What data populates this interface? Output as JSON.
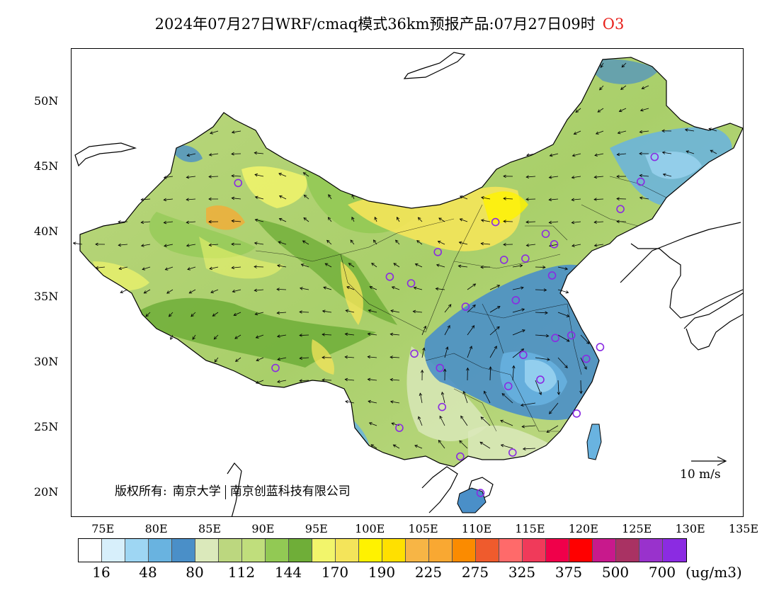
{
  "title": {
    "main": "2024年07月27日WRF/cmaq模式36km预报产品:07月27日09时",
    "variable": "O3"
  },
  "map": {
    "lat_labels": [
      "50N",
      "45N",
      "40N",
      "35N",
      "30N",
      "25N",
      "20N"
    ],
    "lon_labels": [
      "75E",
      "80E",
      "85E",
      "90E",
      "95E",
      "100E",
      "105E",
      "110E",
      "115E",
      "120E",
      "125E",
      "130E",
      "135E"
    ],
    "copyright": {
      "prefix": "版权所有:",
      "org1": "南京大学",
      "org2": "南京创蓝科技有限公司"
    },
    "wind_reference": "10 m/s",
    "colors": {
      "land_outline": "#000000",
      "station_marker": "#8a2be2"
    },
    "stations": [
      {
        "lon": 87.6,
        "lat": 43.8
      },
      {
        "lon": 91.1,
        "lat": 29.6
      },
      {
        "lon": 101.8,
        "lat": 36.6
      },
      {
        "lon": 103.8,
        "lat": 36.1
      },
      {
        "lon": 104.1,
        "lat": 30.7
      },
      {
        "lon": 102.7,
        "lat": 25.0
      },
      {
        "lon": 106.5,
        "lat": 29.6
      },
      {
        "lon": 106.7,
        "lat": 26.6
      },
      {
        "lon": 108.4,
        "lat": 22.8
      },
      {
        "lon": 110.3,
        "lat": 20.0
      },
      {
        "lon": 108.9,
        "lat": 34.3
      },
      {
        "lon": 106.3,
        "lat": 38.5
      },
      {
        "lon": 111.7,
        "lat": 40.8
      },
      {
        "lon": 112.5,
        "lat": 37.9
      },
      {
        "lon": 114.5,
        "lat": 38.0
      },
      {
        "lon": 116.4,
        "lat": 39.9
      },
      {
        "lon": 117.2,
        "lat": 39.1
      },
      {
        "lon": 117.0,
        "lat": 36.7
      },
      {
        "lon": 113.6,
        "lat": 34.8
      },
      {
        "lon": 114.3,
        "lat": 30.6
      },
      {
        "lon": 112.9,
        "lat": 28.2
      },
      {
        "lon": 115.9,
        "lat": 28.7
      },
      {
        "lon": 117.3,
        "lat": 31.9
      },
      {
        "lon": 118.8,
        "lat": 32.1
      },
      {
        "lon": 120.2,
        "lat": 30.3
      },
      {
        "lon": 121.5,
        "lat": 31.2
      },
      {
        "lon": 119.3,
        "lat": 26.1
      },
      {
        "lon": 113.3,
        "lat": 23.1
      },
      {
        "lon": 123.4,
        "lat": 41.8
      },
      {
        "lon": 125.3,
        "lat": 43.9
      },
      {
        "lon": 126.6,
        "lat": 45.8
      }
    ]
  },
  "legend": {
    "colors": [
      "#ffffff",
      "#d7effb",
      "#9ed6f3",
      "#69b3e0",
      "#4a8fc8",
      "#dbe9bb",
      "#bcd77f",
      "#c0de7c",
      "#92c954",
      "#6fae38",
      "#f2f56b",
      "#f4e45a",
      "#fff200",
      "#ffe000",
      "#f7b545",
      "#f9a832",
      "#fb8b00",
      "#ef5b2d",
      "#ff6a6a",
      "#f03a5a",
      "#f0004a",
      "#ff0000",
      "#c8198c",
      "#a93263",
      "#9932cc",
      "#8b2be2"
    ],
    "labels": [
      "16",
      "48",
      "80",
      "112",
      "144",
      "170",
      "190",
      "225",
      "275",
      "325",
      "375",
      "500",
      "700"
    ],
    "unit": "(ug/m3)"
  }
}
